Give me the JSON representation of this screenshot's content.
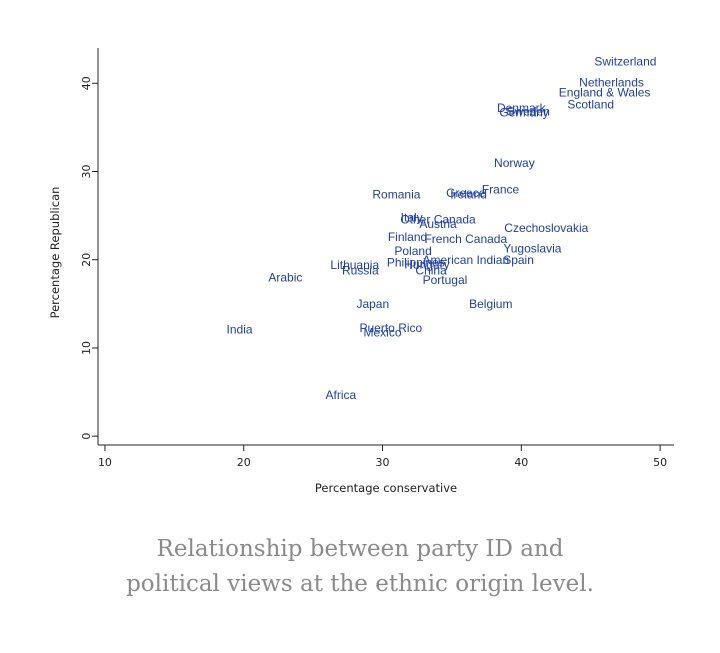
{
  "chart_data": {
    "type": "scatter",
    "title": "",
    "xlabel": "Percentage conservative",
    "ylabel": "Percentage Republican",
    "xlim": [
      9.5,
      51
    ],
    "ylim": [
      -1,
      44
    ],
    "xticks": [
      10,
      20,
      30,
      40,
      50
    ],
    "yticks": [
      0,
      10,
      20,
      30,
      40
    ],
    "grid": false,
    "legend": "none",
    "marker_color": "#1f3fa8",
    "points": [
      {
        "label": "Switzerland",
        "x": 47.5,
        "y": 42.5
      },
      {
        "label": "Netherlands",
        "x": 46.5,
        "y": 40.1
      },
      {
        "label": "England & Wales",
        "x": 46.0,
        "y": 39.0
      },
      {
        "label": "Scotland",
        "x": 45.0,
        "y": 37.6
      },
      {
        "label": "Denmark",
        "x": 40.0,
        "y": 37.2
      },
      {
        "label": "Sweden",
        "x": 40.5,
        "y": 36.8
      },
      {
        "label": "Germany",
        "x": 40.2,
        "y": 36.7
      },
      {
        "label": "Norway",
        "x": 39.5,
        "y": 31.0
      },
      {
        "label": "France",
        "x": 38.5,
        "y": 28.0
      },
      {
        "label": "Greece",
        "x": 36.0,
        "y": 27.6
      },
      {
        "label": "Ireland",
        "x": 36.2,
        "y": 27.4
      },
      {
        "label": "Romania",
        "x": 31.0,
        "y": 27.4
      },
      {
        "label": "Italy",
        "x": 32.1,
        "y": 24.8
      },
      {
        "label": "Other Canada",
        "x": 34.0,
        "y": 24.6
      },
      {
        "label": "Austria",
        "x": 34.0,
        "y": 24.1
      },
      {
        "label": "Czechoslovakia",
        "x": 41.8,
        "y": 23.6
      },
      {
        "label": "Finland",
        "x": 31.8,
        "y": 22.6
      },
      {
        "label": "French Canada",
        "x": 36.0,
        "y": 22.4
      },
      {
        "label": "Yugoslavia",
        "x": 40.8,
        "y": 21.3
      },
      {
        "label": "Poland",
        "x": 32.2,
        "y": 21.0
      },
      {
        "label": "American Indian",
        "x": 36.0,
        "y": 20.0
      },
      {
        "label": "Spain",
        "x": 39.8,
        "y": 20.0
      },
      {
        "label": "Philippines",
        "x": 32.4,
        "y": 19.7
      },
      {
        "label": "Hungary",
        "x": 33.2,
        "y": 19.5
      },
      {
        "label": "Lithuania",
        "x": 28.0,
        "y": 19.4
      },
      {
        "label": "China",
        "x": 33.5,
        "y": 18.8
      },
      {
        "label": "Russia",
        "x": 28.4,
        "y": 18.8
      },
      {
        "label": "Arabic",
        "x": 23.0,
        "y": 18.0
      },
      {
        "label": "Portugal",
        "x": 34.5,
        "y": 17.7
      },
      {
        "label": "Japan",
        "x": 29.3,
        "y": 15.0
      },
      {
        "label": "Belgium",
        "x": 37.8,
        "y": 15.0
      },
      {
        "label": "Puerto Rico",
        "x": 30.6,
        "y": 12.3
      },
      {
        "label": "Mexico",
        "x": 30.0,
        "y": 11.8
      },
      {
        "label": "India",
        "x": 19.7,
        "y": 12.1
      },
      {
        "label": "Africa",
        "x": 27.0,
        "y": 4.7
      }
    ]
  },
  "caption": "Relationship between party ID and political views at the ethnic origin level."
}
